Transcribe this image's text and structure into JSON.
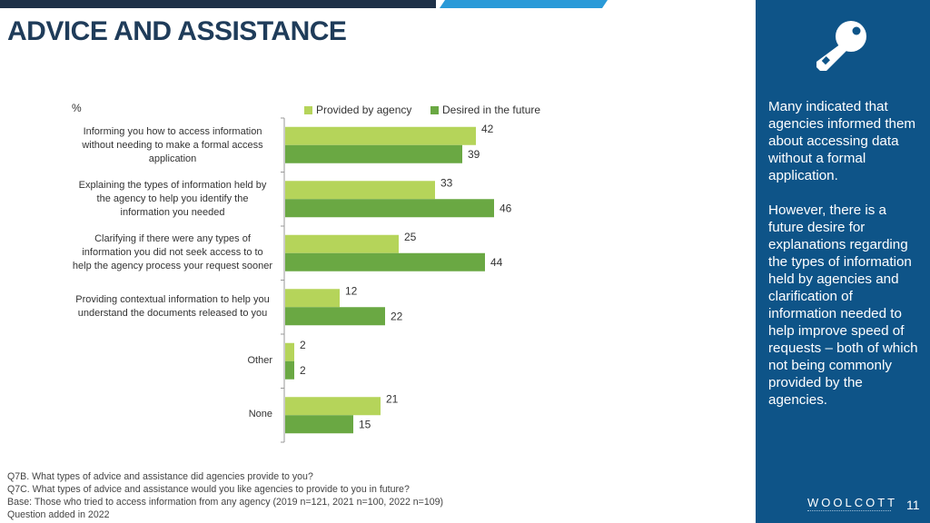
{
  "header": {
    "title": "ADVICE AND ASSISTANCE"
  },
  "colors": {
    "provided": "#b5d45a",
    "desired": "#6aa843",
    "panel": "#0e5488",
    "title": "#1f3c5a"
  },
  "chart_data": {
    "type": "bar",
    "orientation": "horizontal",
    "unit_label": "%",
    "categories": [
      "Informing you how to access information without needing to make a formal access application",
      "Explaining the types of information held by the agency to help you identify the information you needed",
      "Clarifying if there were any types of information you did not seek access to to help the agency process your request sooner",
      "Providing contextual information to help you understand the documents released to you",
      "Other",
      "None"
    ],
    "category_lines": [
      [
        "Informing you how to access information",
        "without needing to make a formal access",
        "application"
      ],
      [
        "Explaining the types of information held by",
        "the agency to help you identify the",
        "information you needed"
      ],
      [
        "Clarifying if there were any types of",
        "information you did not seek access to  to",
        "help the agency process your request sooner"
      ],
      [
        "Providing contextual information to help you",
        "understand the documents released to you"
      ],
      [
        "Other"
      ],
      [
        "None"
      ]
    ],
    "series": [
      {
        "name": "Provided by agency",
        "values": [
          42,
          33,
          25,
          12,
          2,
          21
        ]
      },
      {
        "name": "Desired in the future",
        "values": [
          39,
          46,
          44,
          22,
          2,
          15
        ]
      }
    ],
    "xlim": [
      0,
      50
    ]
  },
  "sidebar": {
    "paragraph1": "Many indicated that agencies informed them about accessing data without a formal application.",
    "paragraph2": "However, there is a future desire for explanations regarding the types of information held by agencies and clarification of information needed to help improve speed of requests – both of which not being commonly provided by the agencies.",
    "logo": "WOOLCOTT",
    "page_number": "11"
  },
  "footnotes": [
    "Q7B. What types of advice and assistance did agencies provide to you?",
    "Q7C. What types of advice and assistance would you like agencies to provide to you in future?",
    "Base: Those who tried to access information from any agency (2019 n=121, 2021 n=100, 2022 n=109)",
    "Question added in 2022"
  ]
}
